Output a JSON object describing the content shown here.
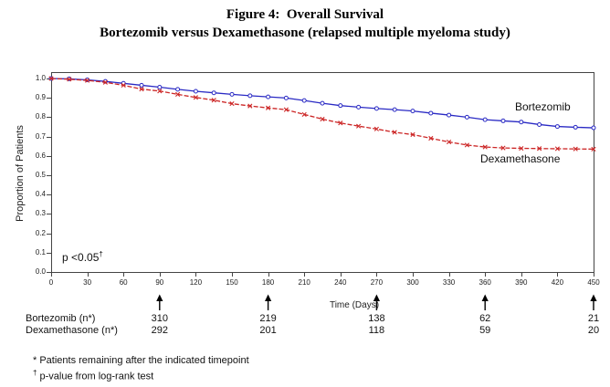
{
  "title": {
    "line1": "Figure 4:  Overall Survival",
    "line2": "Bortezomib versus Dexamethasone (relapsed multiple myeloma study)"
  },
  "chart": {
    "ylabel": "Proportion of Patients",
    "xlabel": "Time (Days)",
    "p_annotation": {
      "text": "p <0.05",
      "sup": "†"
    },
    "legend": {
      "bortezomib": "Bortezomib",
      "dexamethasone": "Dexamethasone"
    }
  },
  "chart_data": {
    "type": "line",
    "title": "Overall Survival — Bortezomib versus Dexamethasone (relapsed multiple myeloma study)",
    "xlabel": "Time (Days)",
    "ylabel": "Proportion of Patients",
    "xlim": [
      0,
      450
    ],
    "ylim": [
      0.0,
      1.0
    ],
    "x_ticks": [
      0,
      30,
      60,
      90,
      120,
      150,
      180,
      210,
      240,
      270,
      300,
      330,
      360,
      390,
      420,
      450
    ],
    "y_ticks": [
      0.0,
      0.1,
      0.2,
      0.3,
      0.4,
      0.5,
      0.6,
      0.7,
      0.8,
      0.9,
      1.0
    ],
    "grid": false,
    "x": [
      0,
      15,
      30,
      45,
      60,
      75,
      90,
      105,
      120,
      135,
      150,
      165,
      180,
      195,
      210,
      225,
      240,
      255,
      270,
      285,
      300,
      315,
      330,
      345,
      360,
      375,
      390,
      405,
      420,
      435,
      450
    ],
    "series": [
      {
        "name": "Bortezomib",
        "color": "#2A2AC4",
        "marker": "circle",
        "line_style": "solid",
        "values": [
          1.0,
          0.998,
          0.993,
          0.985,
          0.975,
          0.965,
          0.955,
          0.944,
          0.934,
          0.926,
          0.918,
          0.911,
          0.905,
          0.899,
          0.886,
          0.872,
          0.86,
          0.852,
          0.845,
          0.839,
          0.832,
          0.821,
          0.811,
          0.8,
          0.787,
          0.781,
          0.775,
          0.762,
          0.752,
          0.748,
          0.745
        ]
      },
      {
        "name": "Dexamethasone",
        "color": "#CC2626",
        "marker": "x",
        "line_style": "dashed",
        "values": [
          1.0,
          0.996,
          0.99,
          0.98,
          0.965,
          0.945,
          0.935,
          0.918,
          0.902,
          0.888,
          0.87,
          0.858,
          0.848,
          0.839,
          0.814,
          0.79,
          0.77,
          0.754,
          0.739,
          0.722,
          0.71,
          0.691,
          0.672,
          0.656,
          0.646,
          0.641,
          0.639,
          0.638,
          0.637,
          0.636,
          0.635
        ]
      }
    ],
    "annotations": [
      "p <0.05†"
    ]
  },
  "risk_table": {
    "timepoints": [
      90,
      180,
      270,
      360,
      450
    ],
    "rows": [
      {
        "label": "Bortezomib (n*)",
        "values": [
          "310",
          "219",
          "138",
          "62",
          "21"
        ]
      },
      {
        "label": "Dexamethasone (n*)",
        "values": [
          "292",
          "201",
          "118",
          "59",
          "20"
        ]
      }
    ]
  },
  "footnotes": [
    {
      "marker": "*",
      "text": "Patients remaining after the indicated timepoint"
    },
    {
      "marker": "†",
      "text": "p-value from log-rank test"
    }
  ]
}
